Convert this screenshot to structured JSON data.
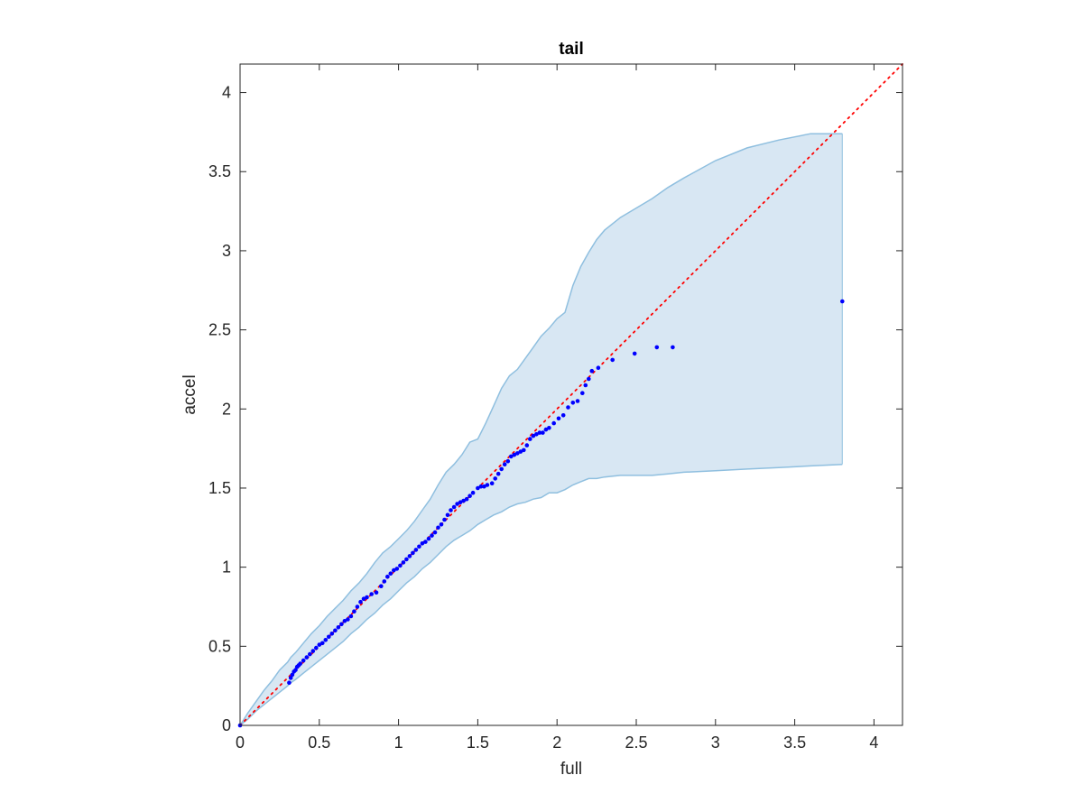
{
  "chart_data": {
    "type": "scatter",
    "title": "tail",
    "xlabel": "full",
    "ylabel": "accel",
    "xlim": [
      0,
      4.18
    ],
    "ylim": [
      0,
      4.18
    ],
    "xticks": [
      0,
      0.5,
      1,
      1.5,
      2,
      2.5,
      3,
      3.5,
      4
    ],
    "yticks": [
      0,
      0.5,
      1,
      1.5,
      2,
      2.5,
      3,
      3.5,
      4
    ],
    "xtick_labels": [
      "0",
      "0.5",
      "1",
      "1.5",
      "2",
      "2.5",
      "3",
      "3.5",
      "4"
    ],
    "ytick_labels": [
      "0",
      "0.5",
      "1",
      "1.5",
      "2",
      "2.5",
      "3",
      "3.5",
      "4"
    ],
    "grid": false,
    "box": true,
    "colors": {
      "points": "#0000ff",
      "reference_line": "#ff0000",
      "band_fill": "#d8e7f3",
      "band_edge": "#8fbfdf",
      "axes": "#262626"
    },
    "reference_line": {
      "style": "dotted",
      "x": [
        0,
        4.18
      ],
      "y": [
        0,
        4.18
      ]
    },
    "band": {
      "x": [
        0,
        0.05,
        0.1,
        0.15,
        0.2,
        0.25,
        0.3,
        0.32,
        0.35,
        0.4,
        0.45,
        0.5,
        0.55,
        0.6,
        0.65,
        0.7,
        0.75,
        0.8,
        0.85,
        0.9,
        0.95,
        1.0,
        1.05,
        1.1,
        1.15,
        1.2,
        1.25,
        1.3,
        1.35,
        1.4,
        1.45,
        1.5,
        1.55,
        1.6,
        1.65,
        1.7,
        1.75,
        1.8,
        1.85,
        1.9,
        1.95,
        2.0,
        2.05,
        2.1,
        2.15,
        2.2,
        2.25,
        2.3,
        2.4,
        2.5,
        2.6,
        2.7,
        2.8,
        3.0,
        3.2,
        3.4,
        3.6,
        3.8
      ],
      "upper": [
        0,
        0.08,
        0.15,
        0.22,
        0.28,
        0.35,
        0.4,
        0.43,
        0.46,
        0.52,
        0.58,
        0.63,
        0.69,
        0.74,
        0.79,
        0.85,
        0.9,
        0.96,
        1.03,
        1.09,
        1.13,
        1.18,
        1.23,
        1.29,
        1.36,
        1.43,
        1.52,
        1.6,
        1.65,
        1.71,
        1.79,
        1.81,
        1.91,
        2.02,
        2.13,
        2.21,
        2.25,
        2.32,
        2.39,
        2.46,
        2.51,
        2.57,
        2.61,
        2.78,
        2.9,
        2.99,
        3.07,
        3.13,
        3.21,
        3.27,
        3.33,
        3.4,
        3.46,
        3.57,
        3.65,
        3.7,
        3.74,
        3.74
      ],
      "lower": [
        0,
        0.04,
        0.09,
        0.13,
        0.17,
        0.21,
        0.25,
        0.27,
        0.29,
        0.33,
        0.37,
        0.41,
        0.45,
        0.49,
        0.53,
        0.58,
        0.62,
        0.67,
        0.71,
        0.76,
        0.8,
        0.85,
        0.9,
        0.94,
        0.99,
        1.03,
        1.08,
        1.13,
        1.17,
        1.2,
        1.23,
        1.27,
        1.3,
        1.33,
        1.35,
        1.38,
        1.4,
        1.41,
        1.43,
        1.44,
        1.47,
        1.47,
        1.49,
        1.52,
        1.54,
        1.56,
        1.56,
        1.57,
        1.58,
        1.58,
        1.58,
        1.59,
        1.6,
        1.61,
        1.62,
        1.63,
        1.64,
        1.65
      ]
    },
    "series": [
      {
        "x": [
          0.0,
          0.31,
          0.32,
          0.33,
          0.34,
          0.35,
          0.36,
          0.37,
          0.38,
          0.4,
          0.42,
          0.44,
          0.46,
          0.48,
          0.5,
          0.52,
          0.54,
          0.56,
          0.58,
          0.6,
          0.62,
          0.64,
          0.66,
          0.68,
          0.7,
          0.72,
          0.74,
          0.76,
          0.78,
          0.8,
          0.83,
          0.86,
          0.89,
          0.91,
          0.93,
          0.95,
          0.97,
          0.99,
          1.01,
          1.03,
          1.05,
          1.07,
          1.09,
          1.11,
          1.13,
          1.15,
          1.17,
          1.19,
          1.21,
          1.23,
          1.25,
          1.27,
          1.29,
          1.31,
          1.33,
          1.35,
          1.37,
          1.39,
          1.41,
          1.43,
          1.45,
          1.47,
          1.5,
          1.52,
          1.54,
          1.56,
          1.59,
          1.61,
          1.63,
          1.65,
          1.67,
          1.69,
          1.71,
          1.73,
          1.75,
          1.77,
          1.79,
          1.81,
          1.83,
          1.85,
          1.87,
          1.89,
          1.91,
          1.93,
          1.95,
          1.98,
          2.01,
          2.04,
          2.07,
          2.1,
          2.13,
          2.16,
          2.18,
          2.2,
          2.22,
          2.26,
          2.35,
          2.49,
          2.63,
          2.73,
          3.8
        ],
        "y": [
          0.0,
          0.27,
          0.3,
          0.32,
          0.34,
          0.35,
          0.37,
          0.38,
          0.39,
          0.41,
          0.43,
          0.45,
          0.47,
          0.49,
          0.51,
          0.52,
          0.54,
          0.56,
          0.58,
          0.6,
          0.62,
          0.64,
          0.66,
          0.67,
          0.69,
          0.72,
          0.75,
          0.78,
          0.8,
          0.81,
          0.83,
          0.84,
          0.88,
          0.91,
          0.94,
          0.96,
          0.98,
          0.99,
          1.01,
          1.03,
          1.05,
          1.07,
          1.09,
          1.11,
          1.13,
          1.15,
          1.16,
          1.18,
          1.2,
          1.22,
          1.25,
          1.27,
          1.3,
          1.33,
          1.36,
          1.38,
          1.4,
          1.41,
          1.42,
          1.43,
          1.45,
          1.47,
          1.5,
          1.51,
          1.51,
          1.52,
          1.53,
          1.56,
          1.59,
          1.62,
          1.65,
          1.67,
          1.7,
          1.71,
          1.72,
          1.73,
          1.74,
          1.77,
          1.81,
          1.83,
          1.84,
          1.85,
          1.85,
          1.87,
          1.88,
          1.91,
          1.94,
          1.96,
          2.01,
          2.04,
          2.05,
          2.1,
          2.15,
          2.19,
          2.24,
          2.26,
          2.31,
          2.35,
          2.39,
          2.39,
          2.68
        ]
      }
    ]
  }
}
